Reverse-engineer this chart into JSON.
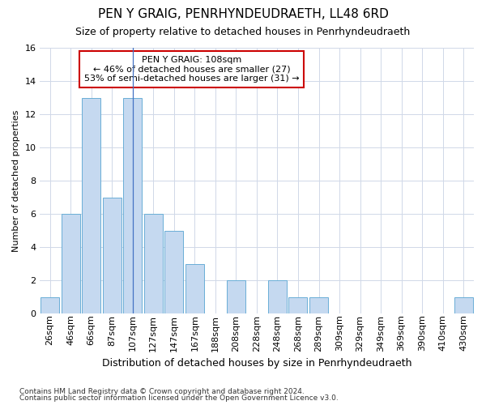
{
  "title1": "PEN Y GRAIG, PENRHYNDEUDRAETH, LL48 6RD",
  "title2": "Size of property relative to detached houses in Penrhyndeudraeth",
  "xlabel": "Distribution of detached houses by size in Penrhyndeudraeth",
  "ylabel": "Number of detached properties",
  "footnote1": "Contains HM Land Registry data © Crown copyright and database right 2024.",
  "footnote2": "Contains public sector information licensed under the Open Government Licence v3.0.",
  "annotation_line1": "PEN Y GRAIG: 108sqm",
  "annotation_line2": "← 46% of detached houses are smaller (27)",
  "annotation_line3": "53% of semi-detached houses are larger (31) →",
  "bar_labels": [
    "26sqm",
    "46sqm",
    "66sqm",
    "87sqm",
    "107sqm",
    "127sqm",
    "147sqm",
    "167sqm",
    "188sqm",
    "208sqm",
    "228sqm",
    "248sqm",
    "268sqm",
    "289sqm",
    "309sqm",
    "329sqm",
    "349sqm",
    "369sqm",
    "390sqm",
    "410sqm",
    "430sqm"
  ],
  "bar_values": [
    1,
    6,
    13,
    7,
    13,
    6,
    5,
    3,
    0,
    2,
    0,
    2,
    1,
    1,
    0,
    0,
    0,
    0,
    0,
    0,
    1
  ],
  "bar_color": "#c5d9f0",
  "bar_edge_color": "#6aaed6",
  "highlight_bar_index": 4,
  "highlight_line_color": "#4472c4",
  "annotation_box_facecolor": "#ffffff",
  "annotation_box_edge_color": "#cc0000",
  "grid_color": "#d0d8e8",
  "figure_background": "#ffffff",
  "plot_background": "#ffffff",
  "ylim": [
    0,
    16
  ],
  "yticks": [
    0,
    2,
    4,
    6,
    8,
    10,
    12,
    14,
    16
  ],
  "title1_fontsize": 11,
  "title2_fontsize": 9,
  "xlabel_fontsize": 9,
  "ylabel_fontsize": 8,
  "annotation_fontsize": 8,
  "tick_fontsize": 8,
  "footnote_fontsize": 6.5
}
